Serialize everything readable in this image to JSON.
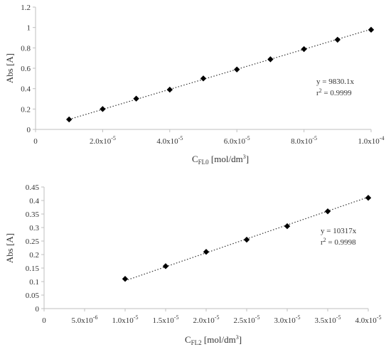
{
  "chart_data": [
    {
      "type": "scatter",
      "xlabel_main": "C",
      "xlabel_sub": "FL0",
      "xlabel_unit_pre": " [mol/dm",
      "xlabel_unit_sup": "3",
      "xlabel_unit_post": "]",
      "ylabel": "Abs [A]",
      "xlim": [
        0,
        0.0001
      ],
      "ylim": [
        0,
        1.2
      ],
      "x_ticks": [
        {
          "value": 0,
          "mant": "0",
          "exp": ""
        },
        {
          "value": 2e-05,
          "mant": "2.0x10",
          "exp": "-5"
        },
        {
          "value": 4e-05,
          "mant": "4.0x10",
          "exp": "-5"
        },
        {
          "value": 6e-05,
          "mant": "6.0x10",
          "exp": "-5"
        },
        {
          "value": 8e-05,
          "mant": "8.0x10",
          "exp": "-5"
        },
        {
          "value": 0.0001,
          "mant": "1.0x10",
          "exp": "-4"
        }
      ],
      "y_ticks": [
        {
          "value": 0,
          "label": "0"
        },
        {
          "value": 0.2,
          "label": "0.2"
        },
        {
          "value": 0.4,
          "label": "0.4"
        },
        {
          "value": 0.6,
          "label": "0.6"
        },
        {
          "value": 0.8,
          "label": "0.8"
        },
        {
          "value": 1.0,
          "label": "1"
        },
        {
          "value": 1.2,
          "label": "1.2"
        }
      ],
      "series": [
        {
          "x": [
            1e-05,
            2e-05,
            3e-05,
            4e-05,
            5e-05,
            6e-05,
            7e-05,
            8e-05,
            9e-05,
            0.0001
          ],
          "y": [
            0.098,
            0.2,
            0.302,
            0.39,
            0.5,
            0.588,
            0.688,
            0.788,
            0.88,
            0.978
          ]
        }
      ],
      "trendline": {
        "slope": 9830.1,
        "x_from": 1e-05,
        "x_to": 0.0001
      },
      "equation_line1": "y = 9830.1x",
      "r2_prefix": "r",
      "r2_sup": "2",
      "r2_value": " = 0.9999",
      "grid": false
    },
    {
      "type": "scatter",
      "xlabel_main": "C",
      "xlabel_sub": "FL2",
      "xlabel_unit_pre": " [mol/dm",
      "xlabel_unit_sup": "3",
      "xlabel_unit_post": "]",
      "ylabel": "Abs [A]",
      "xlim": [
        0,
        4e-05
      ],
      "ylim": [
        0,
        0.45
      ],
      "x_ticks": [
        {
          "value": 0,
          "mant": "0",
          "exp": ""
        },
        {
          "value": 5e-06,
          "mant": "5.0x10",
          "exp": "-6"
        },
        {
          "value": 1e-05,
          "mant": "1.0x10",
          "exp": "-5"
        },
        {
          "value": 1.5e-05,
          "mant": "1.5x10",
          "exp": "-5"
        },
        {
          "value": 2e-05,
          "mant": "2.0x10",
          "exp": "-5"
        },
        {
          "value": 2.5e-05,
          "mant": "2.5x10",
          "exp": "-5"
        },
        {
          "value": 3e-05,
          "mant": "3.0x10",
          "exp": "-5"
        },
        {
          "value": 3.5e-05,
          "mant": "3.5x10",
          "exp": "-5"
        },
        {
          "value": 4e-05,
          "mant": "4.0x10",
          "exp": "-5"
        }
      ],
      "y_ticks": [
        {
          "value": 0,
          "label": "0"
        },
        {
          "value": 0.05,
          "label": "0.05"
        },
        {
          "value": 0.1,
          "label": "0.1"
        },
        {
          "value": 0.15,
          "label": "0.15"
        },
        {
          "value": 0.2,
          "label": "0.2"
        },
        {
          "value": 0.25,
          "label": "0.25"
        },
        {
          "value": 0.3,
          "label": "0.3"
        },
        {
          "value": 0.35,
          "label": "0.35"
        },
        {
          "value": 0.4,
          "label": "0.4"
        },
        {
          "value": 0.45,
          "label": "0.45"
        }
      ],
      "series": [
        {
          "x": [
            1e-05,
            1.5e-05,
            2e-05,
            2.5e-05,
            3e-05,
            3.5e-05,
            4e-05
          ],
          "y": [
            0.11,
            0.157,
            0.21,
            0.255,
            0.305,
            0.36,
            0.41
          ]
        }
      ],
      "trendline": {
        "slope": 10317,
        "x_from": 1e-05,
        "x_to": 4e-05
      },
      "equation_line1": "y = 10317x",
      "r2_prefix": "r",
      "r2_sup": "2",
      "r2_value": " = 0.9998",
      "grid": false
    }
  ]
}
